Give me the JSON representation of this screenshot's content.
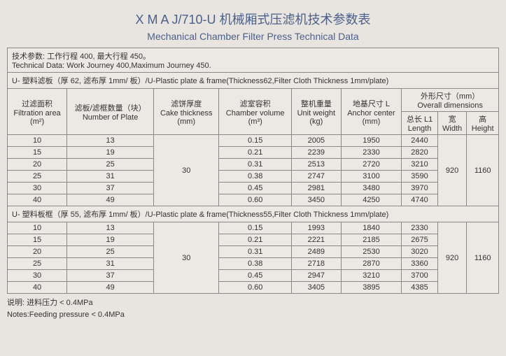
{
  "title_main": "X M A J/710-U 机械厢式压滤机技术参数表",
  "title_sub": "Mechanical Chamber Filter Press Technical Data",
  "technote_cn": "技术参数: 工作行程 400, 最大行程 450。",
  "technote_en": "Technical Data: Work Journey 400,Maximum Journey 450.",
  "section1": "U- 塑料滤板（厚 62, 滤布厚 1mm/ 板）/U-Plastic plate & frame(Thickness62,Filter Cloth Thickness 1mm/plate)",
  "section2": "U- 塑料板框（厚 55, 滤布厚 1mm/ 板）/U-Plastic plate & frame(Thickness55,Filter Cloth Thickness 1mm/plate)",
  "headers": {
    "c0_cn": "过滤面积",
    "c0_en": "Filtration area",
    "c0_unit": "(m²)",
    "c1_cn": "滤板/滤框数量（块）",
    "c1_en": "Number of Plate",
    "c2_cn": "滤饼厚度",
    "c2_en": "Cake thickness",
    "c2_unit": "(mm)",
    "c3_cn": "滤室容积",
    "c3_en": "Chamber volume",
    "c3_unit": "(m³)",
    "c4_cn": "整机重量",
    "c4_en": "Unit weight",
    "c4_unit": "(kg)",
    "c5_cn": "地基尺寸 L",
    "c5_en": "Anchor center",
    "c5_unit": "(mm)",
    "cdim_cn": "外形尺寸（mm）",
    "cdim_en": "Overall dimensions",
    "l_cn": "总长 L1",
    "l_en": "Length",
    "w_cn": "宽",
    "w_en": "Width",
    "h_cn": "高",
    "h_en": "Height"
  },
  "group1": {
    "cake": "30",
    "width": "920",
    "height": "1160",
    "rows": [
      {
        "a": "10",
        "n": "13",
        "v": "0.15",
        "w": "2005",
        "ac": "1950",
        "l": "2440"
      },
      {
        "a": "15",
        "n": "19",
        "v": "0.21",
        "w": "2239",
        "ac": "2330",
        "l": "2820"
      },
      {
        "a": "20",
        "n": "25",
        "v": "0.31",
        "w": "2513",
        "ac": "2720",
        "l": "3210"
      },
      {
        "a": "25",
        "n": "31",
        "v": "0.38",
        "w": "2747",
        "ac": "3100",
        "l": "3590"
      },
      {
        "a": "30",
        "n": "37",
        "v": "0.45",
        "w": "2981",
        "ac": "3480",
        "l": "3970"
      },
      {
        "a": "40",
        "n": "49",
        "v": "0.60",
        "w": "3450",
        "ac": "4250",
        "l": "4740"
      }
    ]
  },
  "group2": {
    "cake": "30",
    "width": "920",
    "height": "1160",
    "rows": [
      {
        "a": "10",
        "n": "13",
        "v": "0.15",
        "w": "1993",
        "ac": "1840",
        "l": "2330"
      },
      {
        "a": "15",
        "n": "19",
        "v": "0.21",
        "w": "2221",
        "ac": "2185",
        "l": "2675"
      },
      {
        "a": "20",
        "n": "25",
        "v": "0.31",
        "w": "2489",
        "ac": "2530",
        "l": "3020"
      },
      {
        "a": "25",
        "n": "31",
        "v": "0.38",
        "w": "2718",
        "ac": "2870",
        "l": "3360"
      },
      {
        "a": "30",
        "n": "37",
        "v": "0.45",
        "w": "2947",
        "ac": "3210",
        "l": "3700"
      },
      {
        "a": "40",
        "n": "49",
        "v": "0.60",
        "w": "3405",
        "ac": "3895",
        "l": "4385"
      }
    ]
  },
  "foot_cn": "说明: 进料压力 < 0.4MPa",
  "foot_en": "Notes:Feeding pressure < 0.4MPa"
}
